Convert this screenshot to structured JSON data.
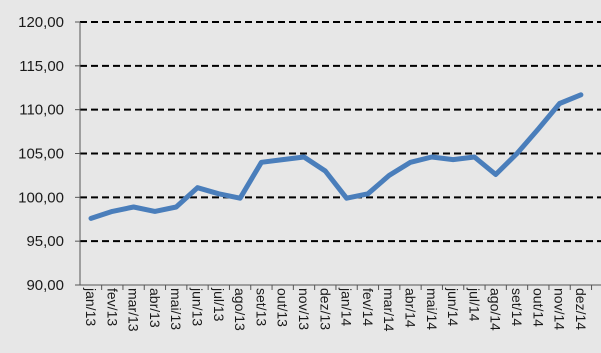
{
  "chart_data": {
    "type": "line",
    "title": "",
    "xlabel": "",
    "ylabel": "",
    "ylim": [
      90,
      120
    ],
    "yticks": [
      "90,00",
      "95,00",
      "100,00",
      "105,00",
      "110,00",
      "115,00",
      "120,00"
    ],
    "ytick_values": [
      90,
      95,
      100,
      105,
      110,
      115,
      120
    ],
    "grid": "horizontal-dashed",
    "legend": "none",
    "categories": [
      "jan/13",
      "fev/13",
      "mar/13",
      "abr/13",
      "mai/13",
      "jun/13",
      "jul/13",
      "ago/13",
      "set/13",
      "out/13",
      "nov/13",
      "dez/13",
      "jan/14",
      "fev/14",
      "mar/14",
      "abr/14",
      "mai/14",
      "jun/14",
      "jul/14",
      "ago/14",
      "set/14",
      "out/14",
      "nov/14",
      "dez/14"
    ],
    "series": [
      {
        "values": [
          97.6,
          98.4,
          98.9,
          98.4,
          98.9,
          101.1,
          100.4,
          99.9,
          104.0,
          104.3,
          104.6,
          103.0,
          99.9,
          100.4,
          102.5,
          104.0,
          104.6,
          104.3,
          104.6,
          102.6,
          105.0,
          107.8,
          110.7,
          111.7
        ],
        "color": "#4a7ebb"
      }
    ],
    "colors": {
      "background": "#e7e7e7",
      "line": "#4a7ebb",
      "grid": "#000000",
      "axis": "#555555",
      "text": "#1a1a1a"
    }
  }
}
